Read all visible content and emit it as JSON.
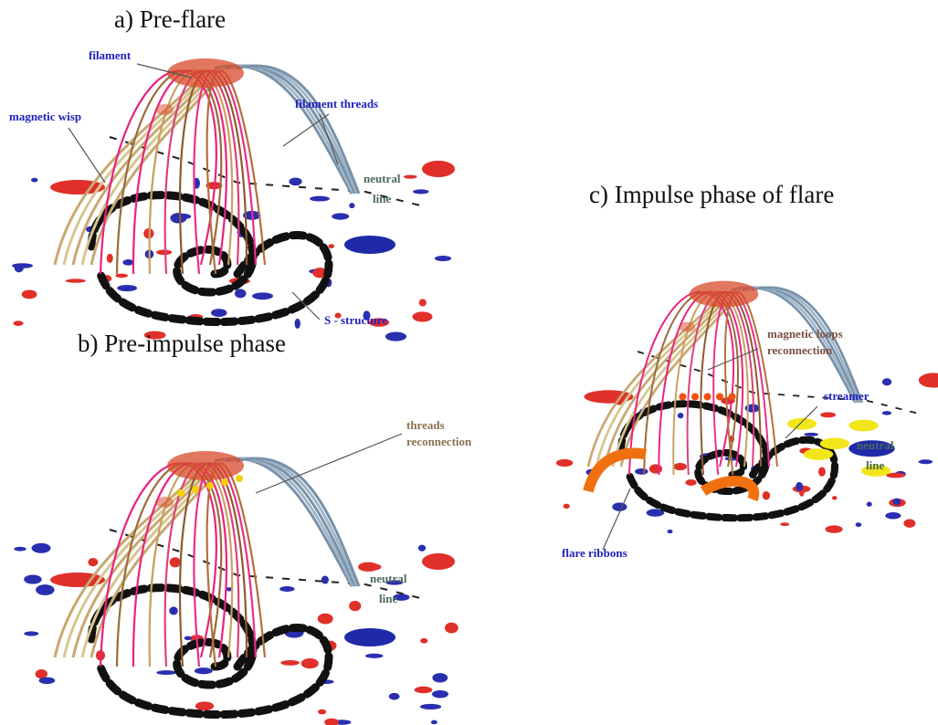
{
  "panels": [
    {
      "title": "a) Pre-flare",
      "labels": [
        {
          "lines": [
            "filament"
          ]
        },
        {
          "lines": [
            "magnetic wisp"
          ]
        },
        {
          "lines": [
            "filament threads"
          ]
        },
        {
          "lines": [
            "neutral",
            "line"
          ]
        },
        {
          "lines": [
            "S - structure"
          ]
        }
      ]
    },
    {
      "title": "b) Pre-impulse phase",
      "labels": [
        {
          "lines": [
            "threads",
            "reconnection"
          ]
        },
        {
          "lines": [
            "neutral",
            "line"
          ]
        }
      ]
    },
    {
      "title": "c) Impulse phase of flare",
      "labels": [
        {
          "lines": [
            "magnetic loops",
            "reconnection"
          ]
        },
        {
          "lines": [
            "streamer"
          ]
        },
        {
          "lines": [
            "neutral",
            "line"
          ]
        },
        {
          "lines": [
            "flare ribbons"
          ]
        }
      ]
    }
  ]
}
